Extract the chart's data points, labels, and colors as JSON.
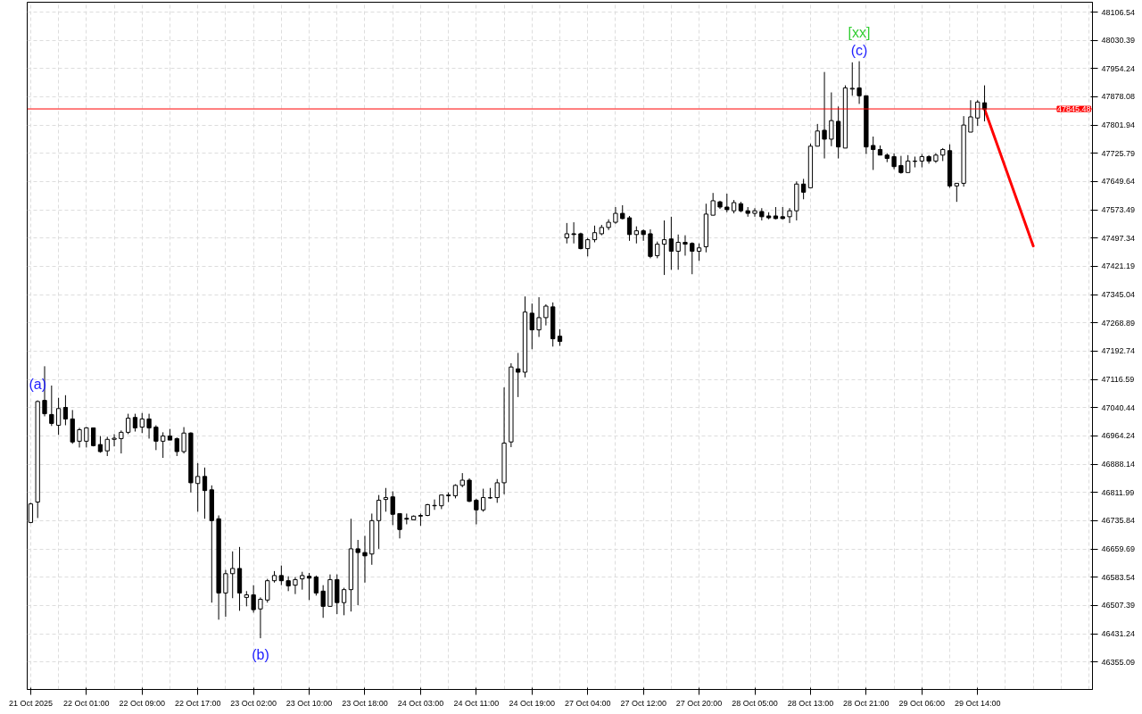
{
  "chart_data": {
    "type": "candlestick",
    "categories": [
      "21 Oct 2025",
      null,
      null,
      null,
      null,
      null,
      null,
      null,
      "22 Oct 01:00",
      null,
      null,
      null,
      null,
      null,
      null,
      null,
      "22 Oct 09:00",
      null,
      null,
      null,
      null,
      null,
      null,
      null,
      "22 Oct 17:00",
      null,
      null,
      null,
      null,
      null,
      null,
      null,
      "23 Oct 02:00",
      null,
      null,
      null,
      null,
      null,
      null,
      null,
      "23 Oct 10:00",
      null,
      null,
      null,
      null,
      null,
      null,
      null,
      "23 Oct 18:00",
      null,
      null,
      null,
      null,
      null,
      null,
      null,
      "24 Oct 03:00",
      null,
      null,
      null,
      null,
      null,
      null,
      null,
      "24 Oct 11:00",
      null,
      null,
      null,
      null,
      null,
      null,
      null,
      "24 Oct 19:00",
      null,
      null,
      null,
      null,
      null,
      null,
      null,
      "27 Oct 04:00",
      null,
      null,
      null,
      null,
      null,
      null,
      null,
      "27 Oct 12:00",
      null,
      null,
      null,
      null,
      null,
      null,
      null,
      "27 Oct 20:00",
      null,
      null,
      null,
      null,
      null,
      null,
      null,
      "28 Oct 05:00",
      null,
      null,
      null,
      null,
      null,
      null,
      null,
      "28 Oct 13:00",
      null,
      null,
      null,
      null,
      null,
      null,
      null,
      "28 Oct 21:00",
      null,
      null,
      null,
      null,
      null,
      null,
      null,
      "29 Oct 06:00",
      null,
      null,
      null,
      null,
      null,
      null,
      null,
      "29 Oct 14:00",
      null,
      null,
      null,
      null,
      null,
      null,
      null,
      null,
      null,
      null,
      null,
      null,
      null,
      null,
      null,
      null
    ],
    "ohlc": [
      [
        46731,
        46784,
        46729,
        46781
      ],
      [
        46786,
        47060,
        46743,
        47057
      ],
      [
        47060,
        47152,
        47017,
        47024
      ],
      [
        47022,
        47100,
        46991,
        46998
      ],
      [
        46993,
        47067,
        46967,
        47038
      ],
      [
        47041,
        47074,
        46993,
        47010
      ],
      [
        47010,
        47034,
        46943,
        46948
      ],
      [
        46950,
        46986,
        46933,
        46981
      ],
      [
        46950,
        46988,
        46933,
        46986
      ],
      [
        46986,
        46986,
        46936,
        46938
      ],
      [
        46941,
        46964,
        46919,
        46922
      ],
      [
        46924,
        46962,
        46910,
        46955
      ],
      [
        46955,
        46969,
        46936,
        46958
      ],
      [
        46957,
        46979,
        46917,
        46974
      ],
      [
        46974,
        47024,
        46969,
        47012
      ],
      [
        47014,
        47024,
        46976,
        46986
      ],
      [
        46988,
        47026,
        46972,
        47010
      ],
      [
        47010,
        47024,
        46957,
        46986
      ],
      [
        46988,
        46993,
        46926,
        46950
      ],
      [
        46950,
        46974,
        46905,
        46964
      ],
      [
        46964,
        46983,
        46953,
        46953
      ],
      [
        46957,
        46960,
        46910,
        46922
      ],
      [
        46922,
        46988,
        46917,
        46972
      ],
      [
        46972,
        46974,
        46812,
        46838
      ],
      [
        46836,
        46891,
        46760,
        46855
      ],
      [
        46855,
        46879,
        46741,
        46817
      ],
      [
        46819,
        46831,
        46515,
        46736
      ],
      [
        46741,
        46750,
        46469,
        46541
      ],
      [
        46541,
        46603,
        46477,
        46593
      ],
      [
        46593,
        46653,
        46527,
        46607
      ],
      [
        46607,
        46665,
        46493,
        46541
      ],
      [
        46529,
        46546,
        46505,
        46536
      ],
      [
        46536,
        46562,
        46488,
        46496
      ],
      [
        46498,
        46529,
        46419,
        46524
      ],
      [
        46522,
        46579,
        46515,
        46574
      ],
      [
        46574,
        46600,
        46569,
        46588
      ],
      [
        46588,
        46615,
        46562,
        46574
      ],
      [
        46574,
        46586,
        46546,
        46560
      ],
      [
        46562,
        46584,
        46538,
        46577
      ],
      [
        46579,
        46598,
        46550,
        46588
      ],
      [
        46586,
        46595,
        46522,
        46581
      ],
      [
        46584,
        46588,
        46534,
        46541
      ],
      [
        46546,
        46562,
        46474,
        46505
      ],
      [
        46505,
        46591,
        46505,
        46577
      ],
      [
        46577,
        46591,
        46484,
        46515
      ],
      [
        46515,
        46555,
        46481,
        46550
      ],
      [
        46550,
        46741,
        46491,
        46660
      ],
      [
        46660,
        46684,
        46508,
        46650
      ],
      [
        46650,
        46695,
        46569,
        46641
      ],
      [
        46646,
        46755,
        46617,
        46736
      ],
      [
        46736,
        46805,
        46660,
        46791
      ],
      [
        46793,
        46824,
        46760,
        46798
      ],
      [
        46800,
        46815,
        46724,
        46753
      ],
      [
        46755,
        46755,
        46688,
        46712
      ],
      [
        46742,
        46755,
        46726,
        46740
      ],
      [
        46738,
        46750,
        46738,
        46748
      ],
      [
        46748,
        46755,
        46722,
        46750
      ],
      [
        46750,
        46781,
        46748,
        46779
      ],
      [
        46776,
        46793,
        46765,
        46777
      ],
      [
        46776,
        46805,
        46767,
        46805
      ],
      [
        46803,
        46812,
        46786,
        46805
      ],
      [
        46803,
        46834,
        46796,
        46831
      ],
      [
        46831,
        46864,
        46826,
        46845
      ],
      [
        46845,
        46850,
        46786,
        46788
      ],
      [
        46791,
        46795,
        46726,
        46765
      ],
      [
        46765,
        46822,
        46760,
        46798
      ],
      [
        46797,
        46824,
        46795,
        46798
      ],
      [
        46798,
        46848,
        46784,
        46838
      ],
      [
        46838,
        47095,
        46807,
        46945
      ],
      [
        46948,
        47160,
        46934,
        47150
      ],
      [
        47145,
        47188,
        47069,
        47136
      ],
      [
        47136,
        47340,
        47122,
        47298
      ],
      [
        47295,
        47321,
        47198,
        47250
      ],
      [
        47250,
        47338,
        47231,
        47283
      ],
      [
        47283,
        47319,
        47262,
        47314
      ],
      [
        47312,
        47324,
        47205,
        47226
      ],
      [
        47233,
        47252,
        47207,
        47219
      ],
      [
        47498,
        47538,
        47483,
        47509
      ],
      [
        47509,
        47540,
        47483,
        47507
      ],
      [
        47509,
        47512,
        47467,
        47469
      ],
      [
        47469,
        47498,
        47448,
        47493
      ],
      [
        47493,
        47531,
        47486,
        47512
      ],
      [
        47509,
        47533,
        47505,
        47526
      ],
      [
        47526,
        47548,
        47519,
        47540
      ],
      [
        47540,
        47581,
        47536,
        47564
      ],
      [
        47564,
        47586,
        47548,
        47550
      ],
      [
        47552,
        47557,
        47490,
        47507
      ],
      [
        47507,
        47529,
        47483,
        47517
      ],
      [
        47517,
        47521,
        47490,
        47507
      ],
      [
        47509,
        47521,
        47443,
        47448
      ],
      [
        47450,
        47488,
        47443,
        47481
      ],
      [
        47481,
        47545,
        47398,
        47493
      ],
      [
        47495,
        47555,
        47412,
        47462
      ],
      [
        47462,
        47507,
        47412,
        47486
      ],
      [
        47486,
        47505,
        47450,
        47481
      ],
      [
        47483,
        47486,
        47400,
        47462
      ],
      [
        47462,
        47483,
        47436,
        47471
      ],
      [
        47474,
        47590,
        47459,
        47562
      ],
      [
        47559,
        47619,
        47559,
        47598
      ],
      [
        47595,
        47598,
        47576,
        47581
      ],
      [
        47581,
        47617,
        47567,
        47574
      ],
      [
        47571,
        47600,
        47564,
        47593
      ],
      [
        47590,
        47595,
        47567,
        47571
      ],
      [
        47571,
        47581,
        47555,
        47564
      ],
      [
        47564,
        47578,
        47555,
        47571
      ],
      [
        47569,
        47578,
        47545,
        47555
      ],
      [
        47557,
        47567,
        47548,
        47552
      ],
      [
        47557,
        47581,
        47548,
        47550
      ],
      [
        47555,
        47581,
        47548,
        47550
      ],
      [
        47555,
        47578,
        47538,
        47571
      ],
      [
        47571,
        47650,
        47545,
        47643
      ],
      [
        47643,
        47657,
        47602,
        47621
      ],
      [
        47633,
        47752,
        47633,
        47745
      ],
      [
        47745,
        47805,
        47745,
        47786
      ],
      [
        47788,
        47945,
        47712,
        47764
      ],
      [
        47764,
        47890,
        47745,
        47814
      ],
      [
        47812,
        47852,
        47712,
        47743
      ],
      [
        47740,
        47909,
        47740,
        47902
      ],
      [
        47899,
        47971,
        47881,
        47901
      ],
      [
        47902,
        47974,
        47859,
        47881
      ],
      [
        47881,
        47881,
        47724,
        47743
      ],
      [
        47747,
        47771,
        47681,
        47736
      ],
      [
        47736,
        47747,
        47721,
        47721
      ],
      [
        47721,
        47726,
        47702,
        47712
      ],
      [
        47717,
        47726,
        47683,
        47690
      ],
      [
        47693,
        47719,
        47671,
        47674
      ],
      [
        47674,
        47721,
        47674,
        47705
      ],
      [
        47704,
        47717,
        47688,
        47705
      ],
      [
        47705,
        47724,
        47688,
        47717
      ],
      [
        47717,
        47721,
        47698,
        47705
      ],
      [
        47705,
        47726,
        47700,
        47721
      ],
      [
        47721,
        47740,
        47705,
        47736
      ],
      [
        47733,
        47750,
        47633,
        47638
      ],
      [
        47638,
        47645,
        47595,
        47645
      ],
      [
        47645,
        47826,
        47636,
        47802
      ],
      [
        47783,
        47869,
        47783,
        47824
      ],
      [
        47821,
        47869,
        47800,
        47864
      ],
      [
        47862,
        47909,
        47812,
        47845
      ],
      null,
      null,
      null,
      null,
      null,
      null,
      null,
      null,
      null,
      null,
      null,
      null,
      null,
      null,
      null
    ],
    "series": [
      {
        "type": "line",
        "color": "#ff0000",
        "values": [
          null,
          null,
          null,
          null,
          null,
          null,
          null,
          null,
          null,
          null,
          null,
          null,
          null,
          null,
          null,
          null,
          null,
          null,
          null,
          null,
          null,
          null,
          null,
          null,
          null,
          null,
          null,
          null,
          null,
          null,
          null,
          null,
          null,
          null,
          null,
          null,
          null,
          null,
          null,
          null,
          null,
          null,
          null,
          null,
          null,
          null,
          null,
          null,
          null,
          null,
          null,
          null,
          null,
          null,
          null,
          null,
          null,
          null,
          null,
          null,
          null,
          null,
          null,
          null,
          null,
          null,
          null,
          null,
          null,
          null,
          null,
          null,
          null,
          null,
          null,
          null,
          null,
          null,
          null,
          null,
          null,
          null,
          null,
          null,
          null,
          null,
          null,
          null,
          null,
          null,
          null,
          null,
          null,
          null,
          null,
          null,
          null,
          null,
          null,
          null,
          null,
          null,
          null,
          null,
          null,
          null,
          null,
          null,
          null,
          null,
          null,
          null,
          null,
          null,
          null,
          null,
          null,
          null,
          null,
          null,
          null,
          null,
          null,
          null,
          null,
          null,
          null,
          null,
          null,
          null,
          null,
          null,
          null,
          null,
          null,
          null,
          null,
          47845,
          null,
          null,
          null,
          null,
          null,
          null,
          47476,
          null,
          null,
          null,
          null,
          null,
          null,
          null,
          null
        ]
      }
    ],
    "ylim": [
      46281,
      48133
    ],
    "yticks": [
      48106.54,
      48030.39,
      47954.24,
      47878.08,
      47801.94,
      47725.79,
      47649.64,
      47573.49,
      47497.34,
      47421.19,
      47345.04,
      47268.89,
      47192.74,
      47116.59,
      47040.44,
      46964.24,
      46888.14,
      46811.99,
      46735.84,
      46659.69,
      46583.54,
      46507.39,
      46431.24,
      46355.09
    ],
    "grid": true,
    "ref_lines": [
      {
        "axis": "y",
        "value": 47845.48,
        "label": "47845.48",
        "color": "#ff0000"
      }
    ],
    "annotations": [
      "(a)",
      "(b)",
      "(c)",
      "[xx]"
    ]
  }
}
